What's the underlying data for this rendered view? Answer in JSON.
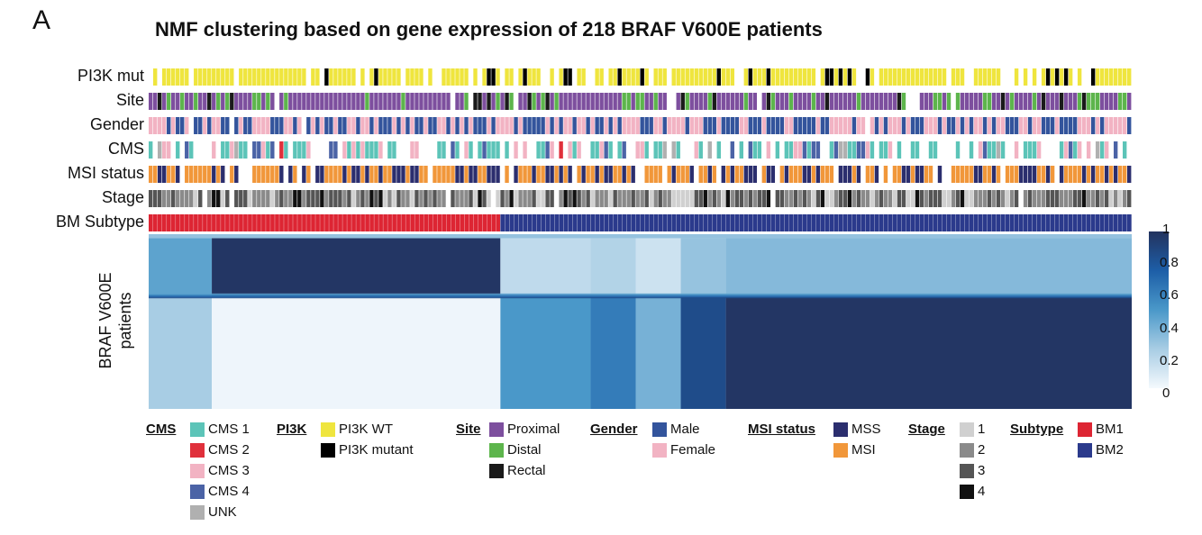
{
  "panel_letter": "A",
  "chart_data": {
    "type": "heatmap",
    "title": "NMF clustering based on gene expression of 218 BRAF V600E patients",
    "ylabel_line1": "BRAF V600E",
    "ylabel_line2": "patients",
    "n_patients": 218,
    "colorbar": {
      "ticks": [
        "1",
        "0.8",
        "0.6",
        "0.4",
        "0.2",
        "0"
      ],
      "range": [
        0,
        1
      ]
    },
    "tracks": [
      {
        "key": "pi3k",
        "label": "PI3K mut"
      },
      {
        "key": "site",
        "label": "Site"
      },
      {
        "key": "gender",
        "label": "Gender"
      },
      {
        "key": "cms",
        "label": "CMS"
      },
      {
        "key": "msi",
        "label": "MSI status"
      },
      {
        "key": "stage",
        "label": "Stage"
      },
      {
        "key": "subtype",
        "label": "BM Subtype"
      }
    ],
    "subtype_counts": {
      "BM1": 78,
      "BM2": 140
    },
    "consensus_blocks": [
      {
        "start": 0,
        "end": 14,
        "value": 0.45
      },
      {
        "start": 14,
        "end": 78,
        "value": 0.98
      },
      {
        "start": 78,
        "end": 98,
        "value": 0.5
      },
      {
        "start": 98,
        "end": 108,
        "value": 0.62
      },
      {
        "start": 108,
        "end": 118,
        "value": 0.38
      },
      {
        "start": 118,
        "end": 128,
        "value": 0.85
      },
      {
        "start": 128,
        "end": 218,
        "value": 0.98
      }
    ],
    "legend": {
      "cms": {
        "title": "CMS",
        "items": [
          {
            "label": "CMS 1",
            "color": "#5cc4b8"
          },
          {
            "label": "CMS 2",
            "color": "#e0303b"
          },
          {
            "label": "CMS 3",
            "color": "#f2b3c3"
          },
          {
            "label": "CMS 4",
            "color": "#4b63a6"
          },
          {
            "label": "UNK",
            "color": "#b0b0b0"
          }
        ]
      },
      "pi3k": {
        "title": "PI3K",
        "items": [
          {
            "label": "PI3K WT",
            "color": "#efe53e"
          },
          {
            "label": "PI3K mutant",
            "color": "#000000"
          }
        ]
      },
      "site": {
        "title": "Site",
        "items": [
          {
            "label": "Proximal",
            "color": "#7d4f9e"
          },
          {
            "label": "Distal",
            "color": "#5db54c"
          },
          {
            "label": "Rectal",
            "color": "#1a1a1a"
          }
        ]
      },
      "gender": {
        "title": "Gender",
        "items": [
          {
            "label": "Male",
            "color": "#33549c"
          },
          {
            "label": "Female",
            "color": "#f2b3c3"
          }
        ]
      },
      "msi": {
        "title": "MSI status",
        "items": [
          {
            "label": "MSS",
            "color": "#2b2e6e"
          },
          {
            "label": "MSI",
            "color": "#f1973a"
          }
        ]
      },
      "stage": {
        "title": "Stage",
        "items": [
          {
            "label": "1",
            "color": "#d0d0d0"
          },
          {
            "label": "2",
            "color": "#8a8a8a"
          },
          {
            "label": "3",
            "color": "#555555"
          },
          {
            "label": "4",
            "color": "#111111"
          }
        ]
      },
      "subtype": {
        "title": "Subtype",
        "items": [
          {
            "label": "BM1",
            "color": "#dd2533"
          },
          {
            "label": "BM2",
            "color": "#2b3a8c"
          }
        ]
      }
    }
  }
}
